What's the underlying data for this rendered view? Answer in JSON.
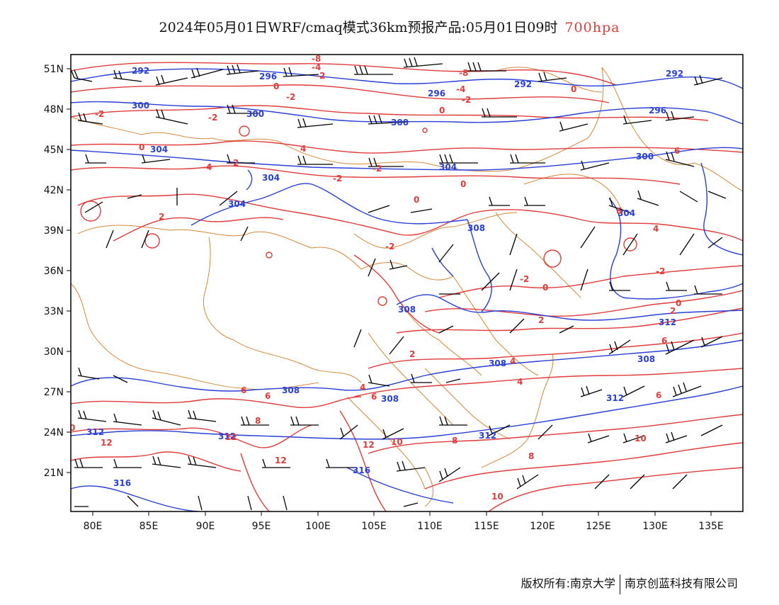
{
  "title": {
    "main": "2024年05月01日WRF/cmaq模式36km预报产品:05月01日09时",
    "level": "700hpa"
  },
  "map": {
    "lat_labels": [
      "51N",
      "48N",
      "45N",
      "42N",
      "39N",
      "36N",
      "33N",
      "30N",
      "27N",
      "24N",
      "21N"
    ],
    "lon_labels": [
      "80E",
      "85E",
      "90E",
      "95E",
      "100E",
      "105E",
      "110E",
      "115E",
      "120E",
      "125E",
      "130E",
      "135E"
    ],
    "geopotential_labels": [
      "292",
      "296",
      "300",
      "304",
      "308",
      "312",
      "316"
    ],
    "temperature_labels": [
      "-8",
      "-4",
      "-2",
      "0",
      "2",
      "4",
      "6",
      "8",
      "10",
      "12"
    ],
    "colors": {
      "geopotential": "#2a3fd6",
      "temperature": "#e03c3c",
      "borders": "#d4883a",
      "wind": "#000000"
    }
  },
  "footer": {
    "copyright": "版权所有:南京大学",
    "company": "南京创蓝科技有限公司"
  }
}
